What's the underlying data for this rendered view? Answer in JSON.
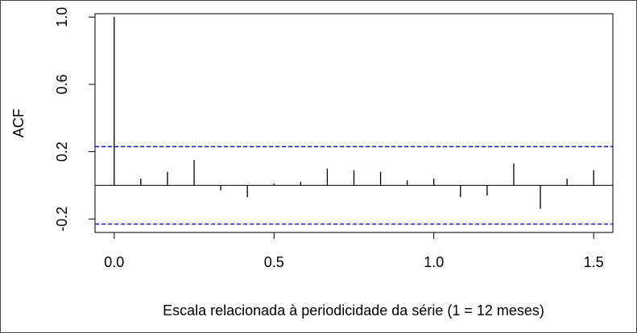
{
  "chart_data": {
    "type": "bar",
    "title": "",
    "xlabel": "Escala relacionada à periodicidade da série (1 = 12 meses)",
    "ylabel": "ACF",
    "xlim": [
      -0.06,
      1.56
    ],
    "ylim": [
      -0.28,
      1.02
    ],
    "x_ticks": [
      0.0,
      0.5,
      1.0,
      1.5
    ],
    "x_tick_labels": [
      "0.0",
      "0.5",
      "1.0",
      "1.5"
    ],
    "y_ticks": [
      -0.2,
      0.2,
      0.6,
      1.0
    ],
    "y_tick_labels": [
      "-0.2",
      "0.2",
      "0.6",
      "1.0"
    ],
    "confidence_bound": 0.23,
    "confidence_color": "#0000cc",
    "grid": false,
    "lags": [
      0.0,
      0.0833,
      0.1667,
      0.25,
      0.3333,
      0.4167,
      0.5,
      0.5833,
      0.6667,
      0.75,
      0.8333,
      0.9167,
      1.0,
      1.0833,
      1.1667,
      1.25,
      1.3333,
      1.4167,
      1.5
    ],
    "values": [
      1.0,
      0.04,
      0.08,
      0.15,
      -0.03,
      -0.07,
      0.01,
      0.02,
      0.1,
      0.09,
      0.08,
      0.03,
      0.04,
      -0.07,
      -0.06,
      0.13,
      -0.14,
      0.04,
      0.09
    ]
  }
}
